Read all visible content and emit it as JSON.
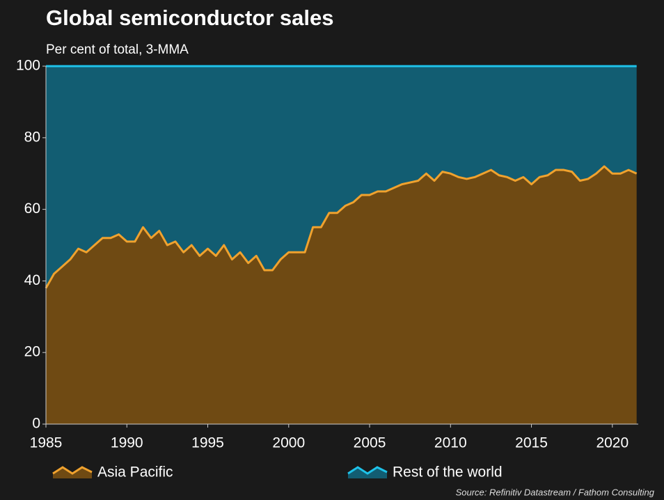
{
  "chart_data": {
    "type": "stacked_area",
    "title": "Global semiconductor sales",
    "subtitle": "Per cent of total, 3-MMA",
    "source": "Source: Refinitiv Datastream / Fathom Consulting",
    "x": [
      1985.0,
      1985.5,
      1986.0,
      1986.5,
      1987.0,
      1987.5,
      1988.0,
      1988.5,
      1989.0,
      1989.5,
      1990.0,
      1990.5,
      1991.0,
      1991.5,
      1992.0,
      1992.5,
      1993.0,
      1993.5,
      1994.0,
      1994.5,
      1995.0,
      1995.5,
      1996.0,
      1996.5,
      1997.0,
      1997.5,
      1998.0,
      1998.5,
      1999.0,
      1999.5,
      2000.0,
      2000.5,
      2001.0,
      2001.5,
      2002.0,
      2002.5,
      2003.0,
      2003.5,
      2004.0,
      2004.5,
      2005.0,
      2005.5,
      2006.0,
      2006.5,
      2007.0,
      2007.5,
      2008.0,
      2008.5,
      2009.0,
      2009.5,
      2010.0,
      2010.5,
      2011.0,
      2011.5,
      2012.0,
      2012.5,
      2013.0,
      2013.5,
      2014.0,
      2014.5,
      2015.0,
      2015.5,
      2016.0,
      2016.5,
      2017.0,
      2017.5,
      2018.0,
      2018.5,
      2019.0,
      2019.5,
      2020.0,
      2020.5,
      2021.0,
      2021.5
    ],
    "series": [
      {
        "name": "Asia Pacific",
        "color": "#f0a22e",
        "fill": "#6f4a13",
        "values": [
          38,
          42,
          44,
          46,
          49,
          48,
          50,
          52,
          52,
          53,
          51,
          51,
          55,
          52,
          54,
          50,
          51,
          48,
          50,
          47,
          49,
          47,
          50,
          46,
          48,
          45,
          47,
          43,
          43,
          46,
          48,
          48,
          48,
          55,
          55,
          59,
          59,
          61,
          62,
          64,
          64,
          65,
          65,
          66,
          67,
          67.5,
          68,
          70,
          68,
          70.5,
          70,
          69,
          68.5,
          69,
          70,
          71,
          69.5,
          69,
          68,
          69,
          67,
          69,
          69.5,
          71,
          71,
          70.5,
          68,
          68.5,
          70,
          72,
          70,
          70,
          71,
          70
        ]
      },
      {
        "name": "Rest of the world",
        "color": "#1ec3ea",
        "fill": "#125d72",
        "values": [
          62,
          58,
          56,
          54,
          51,
          52,
          50,
          48,
          48,
          47,
          49,
          49,
          45,
          48,
          46,
          50,
          49,
          52,
          50,
          53,
          51,
          53,
          50,
          54,
          52,
          55,
          53,
          57,
          57,
          54,
          52,
          52,
          52,
          45,
          45,
          41,
          41,
          39,
          38,
          36,
          36,
          35,
          35,
          34,
          33,
          32.5,
          32,
          30,
          32,
          29.5,
          30,
          31,
          31.5,
          31,
          30,
          29,
          30.5,
          31,
          32,
          31,
          33,
          31,
          30.5,
          29,
          29,
          29.5,
          32,
          31.5,
          30,
          28,
          30,
          30,
          29,
          30
        ]
      }
    ],
    "xlim": [
      1985,
      2021.6
    ],
    "xticks": [
      1985,
      1990,
      1995,
      2000,
      2005,
      2010,
      2015,
      2020
    ],
    "ylim": [
      0,
      100
    ],
    "yticks": [
      0,
      20,
      40,
      60,
      80,
      100
    ]
  }
}
